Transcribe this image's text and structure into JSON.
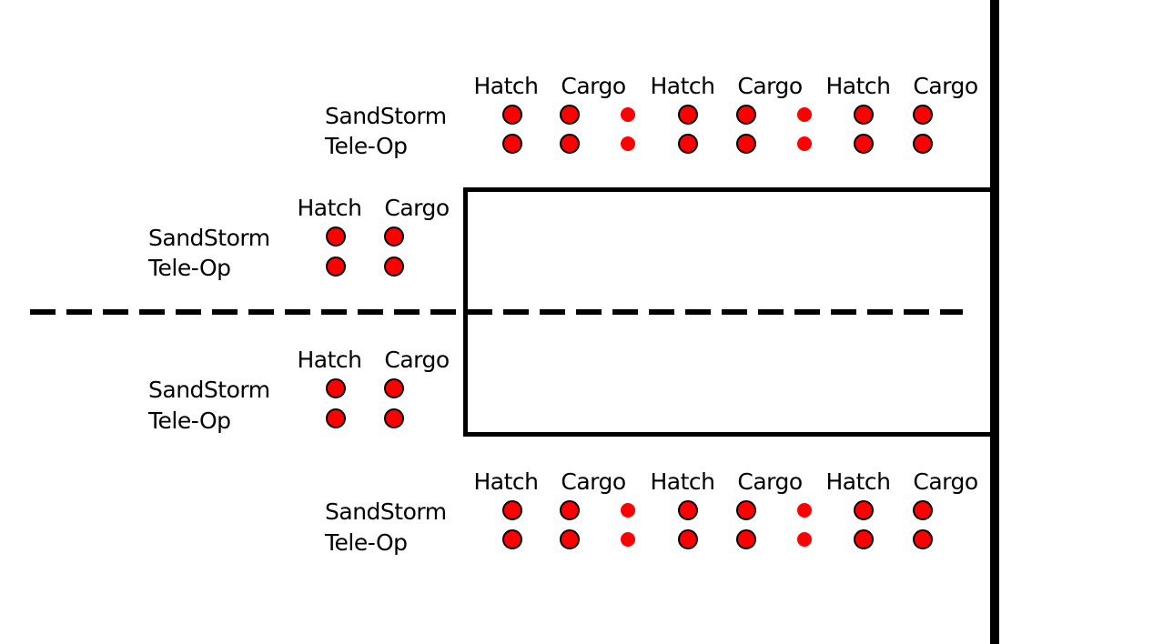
{
  "colors": {
    "ink": "#000000",
    "indicator": "#ff0000",
    "background": "#ffffff"
  },
  "labels": {
    "hatch": "Hatch",
    "cargo": "Cargo",
    "sandstorm": "SandStorm",
    "teleop": "Tele-Op"
  },
  "sections": {
    "top": {
      "columns": [
        "Hatch",
        "Cargo",
        "Hatch",
        "Cargo",
        "Hatch",
        "Cargo"
      ],
      "rows": [
        "SandStorm",
        "Tele-Op"
      ]
    },
    "upper_left": {
      "columns": [
        "Hatch",
        "Cargo"
      ],
      "rows": [
        "SandStorm",
        "Tele-Op"
      ]
    },
    "lower_left": {
      "columns": [
        "Hatch",
        "Cargo"
      ],
      "rows": [
        "SandStorm",
        "Tele-Op"
      ]
    },
    "bottom": {
      "columns": [
        "Hatch",
        "Cargo",
        "Hatch",
        "Cargo",
        "Hatch",
        "Cargo"
      ],
      "rows": [
        "SandStorm",
        "Tele-Op"
      ]
    }
  }
}
